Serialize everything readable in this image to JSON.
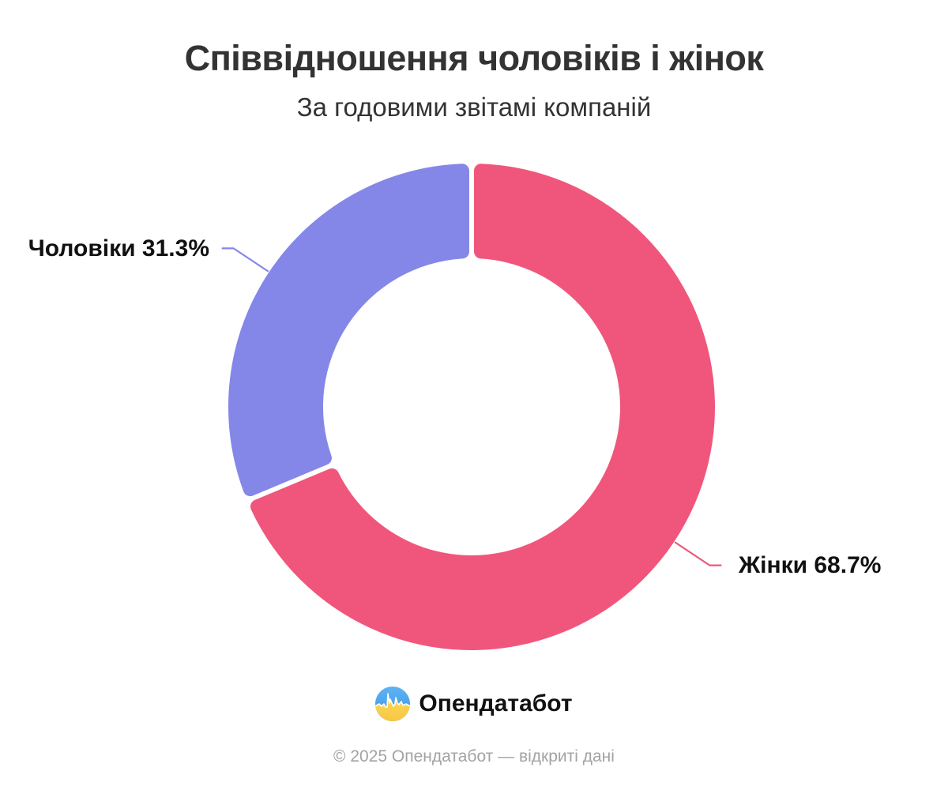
{
  "title": "Співвідношення чоловіків і жінок",
  "subtitle": "За годовими звітамі компаній",
  "chart_data": {
    "type": "pie",
    "donut": true,
    "start_angle_deg": 90,
    "clockwise": true,
    "inner_radius_ratio": 0.61,
    "unit": "%",
    "series": [
      {
        "name": "Жінки",
        "value": 68.7,
        "color": "#F0567C",
        "label": "Жінки 68.7%",
        "label_side": "right"
      },
      {
        "name": "Чоловіки",
        "value": 31.3,
        "color": "#8487E8",
        "label": "Чоловіки 31.3%",
        "label_side": "left"
      }
    ],
    "legend": "none",
    "labels_style": "outside-with-leader-lines"
  },
  "branding": {
    "logo_text": "Опендатабот",
    "logo_colors": {
      "blue": "#47A1EC",
      "yellow": "#FFD74E"
    }
  },
  "footer": {
    "text": "© 2025 Опендатабот — відкриті дані"
  },
  "colors": {
    "title_text": "#333333",
    "label_text": "#111111",
    "footer_text": "#A3A3A3",
    "background": "#FFFFFF"
  }
}
